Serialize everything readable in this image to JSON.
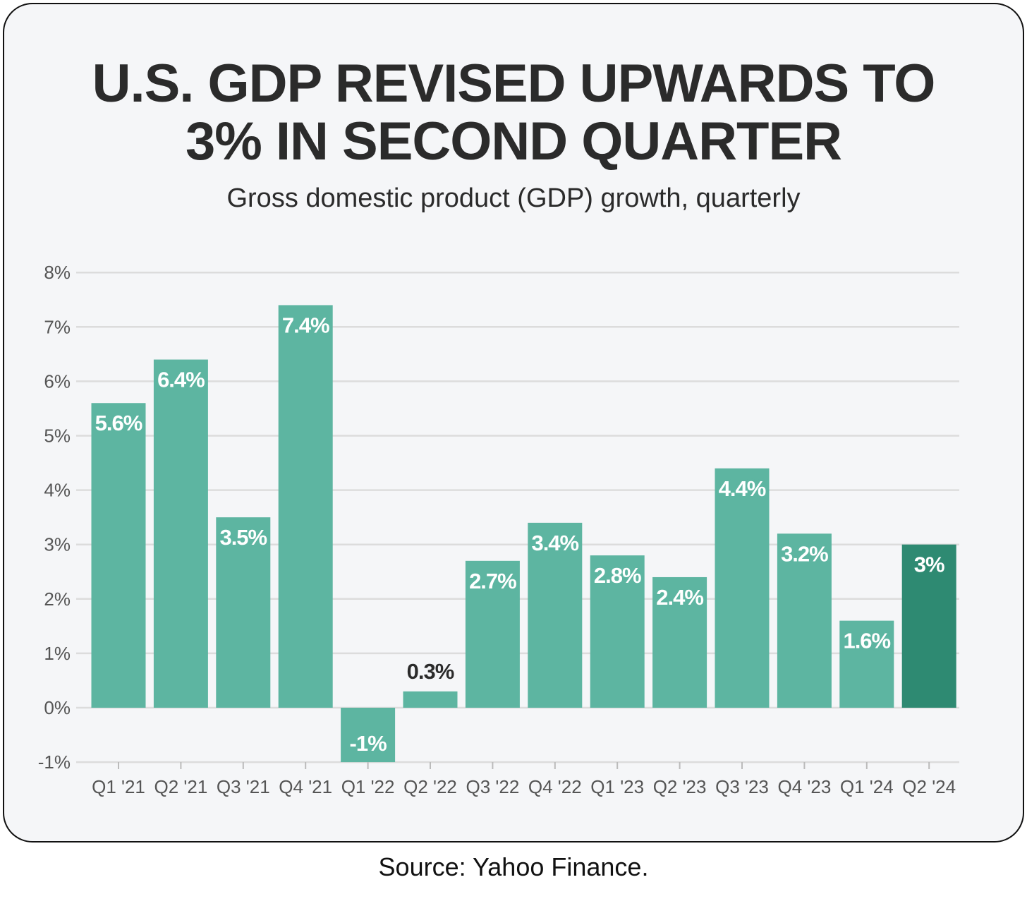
{
  "chart_data": {
    "type": "bar",
    "title": "U.S. GDP REVISED UPWARDS TO 3% IN SECOND QUARTER",
    "subtitle": "Gross domestic product (GDP) growth, quarterly",
    "xlabel": "",
    "ylabel": "",
    "ylim": [
      -1,
      8
    ],
    "yticks": [
      -1,
      0,
      1,
      2,
      3,
      4,
      5,
      6,
      7,
      8
    ],
    "ytick_labels": [
      "-1%",
      "0%",
      "1%",
      "2%",
      "3%",
      "4%",
      "5%",
      "6%",
      "7%",
      "8%"
    ],
    "grid": true,
    "categories": [
      "Q1 '21",
      "Q2 '21",
      "Q3 '21",
      "Q4 '21",
      "Q1 '22",
      "Q2 '22",
      "Q3 '22",
      "Q4 '22",
      "Q1 '23",
      "Q2 '23",
      "Q3 '23",
      "Q4 '23",
      "Q1 '24",
      "Q2 '24"
    ],
    "values": [
      5.6,
      6.4,
      3.5,
      7.4,
      -1,
      0.3,
      2.7,
      3.4,
      2.8,
      2.4,
      4.4,
      3.2,
      1.6,
      3
    ],
    "data_labels": [
      "5.6%",
      "6.4%",
      "3.5%",
      "7.4%",
      "-1%",
      "0.3%",
      "2.7%",
      "3.4%",
      "2.8%",
      "2.4%",
      "4.4%",
      "3.2%",
      "1.6%",
      "3%"
    ],
    "highlight_index": 13,
    "colors": {
      "bar": "#5db5a1",
      "highlight": "#2e8a72",
      "grid": "#dcdcdc",
      "label_dark": "#2b2b2b"
    }
  },
  "source": "Source: Yahoo Finance."
}
